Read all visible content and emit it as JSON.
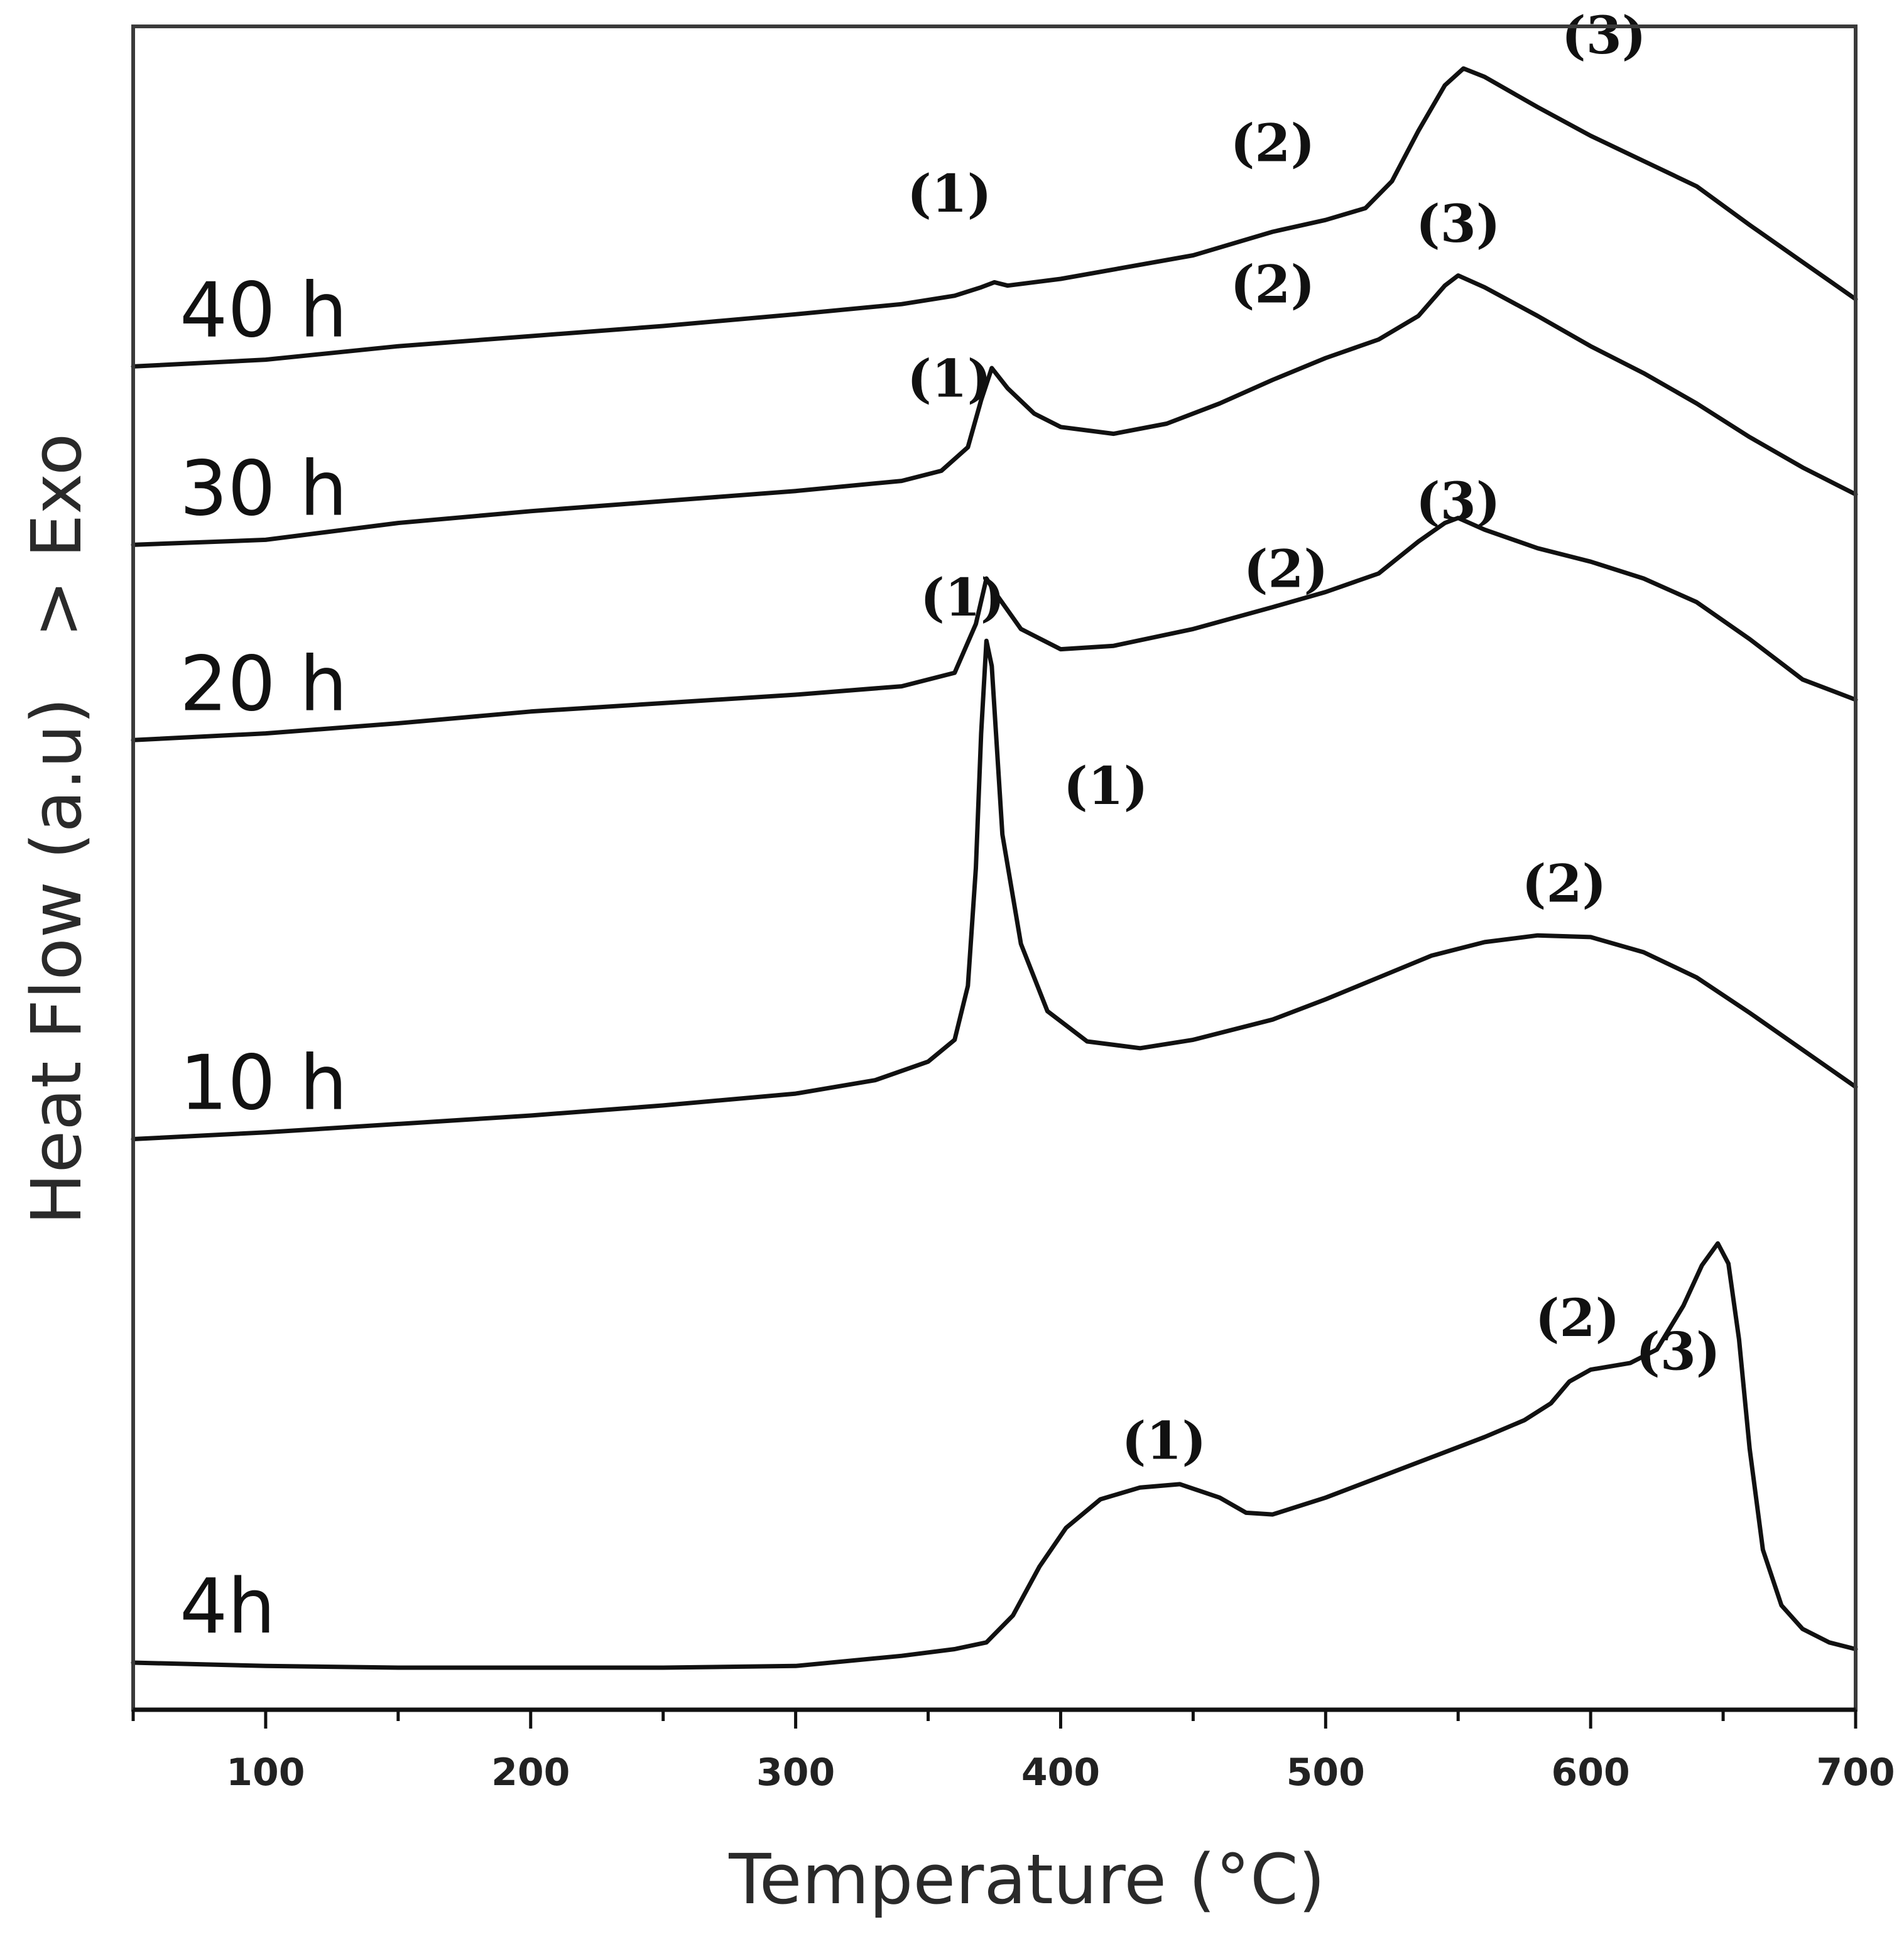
{
  "chart_data": {
    "type": "line",
    "title": "",
    "xlabel": "Temperature (°C)",
    "ylabel": "Heat Flow (a.u)",
    "ylabel_suffix": "> Exo",
    "xlim": [
      50,
      700
    ],
    "ylim": [
      0,
      10
    ],
    "x_ticks": [
      100,
      200,
      300,
      400,
      500,
      600,
      700
    ],
    "x_tick_labels": [
      "100",
      "200",
      "300",
      "400",
      "500",
      "600",
      "700"
    ],
    "grid": false,
    "series": [
      {
        "name": "40 h",
        "points": [
          [
            50,
            7.98
          ],
          [
            100,
            8.02
          ],
          [
            150,
            8.1
          ],
          [
            200,
            8.16
          ],
          [
            250,
            8.22
          ],
          [
            300,
            8.29
          ],
          [
            340,
            8.35
          ],
          [
            360,
            8.4
          ],
          [
            370,
            8.45
          ],
          [
            375,
            8.48
          ],
          [
            380,
            8.46
          ],
          [
            400,
            8.5
          ],
          [
            450,
            8.64
          ],
          [
            480,
            8.78
          ],
          [
            500,
            8.85
          ],
          [
            515,
            8.92
          ],
          [
            525,
            9.08
          ],
          [
            535,
            9.38
          ],
          [
            545,
            9.65
          ],
          [
            552,
            9.75
          ],
          [
            560,
            9.7
          ],
          [
            580,
            9.52
          ],
          [
            600,
            9.35
          ],
          [
            620,
            9.2
          ],
          [
            640,
            9.05
          ],
          [
            660,
            8.82
          ],
          [
            680,
            8.6
          ],
          [
            700,
            8.38
          ]
        ],
        "annotations": [
          {
            "text": "(1)",
            "x": 358,
            "y": 8.9
          },
          {
            "text": "(2)",
            "x": 480,
            "y": 9.2
          },
          {
            "text": "(3)",
            "x": 605,
            "y": 9.84
          }
        ]
      },
      {
        "name": "30 h",
        "points": [
          [
            50,
            6.92
          ],
          [
            100,
            6.95
          ],
          [
            150,
            7.05
          ],
          [
            200,
            7.12
          ],
          [
            250,
            7.18
          ],
          [
            300,
            7.24
          ],
          [
            340,
            7.3
          ],
          [
            355,
            7.36
          ],
          [
            365,
            7.5
          ],
          [
            370,
            7.78
          ],
          [
            374,
            7.97
          ],
          [
            380,
            7.85
          ],
          [
            390,
            7.7
          ],
          [
            400,
            7.62
          ],
          [
            420,
            7.58
          ],
          [
            440,
            7.64
          ],
          [
            460,
            7.76
          ],
          [
            480,
            7.9
          ],
          [
            500,
            8.03
          ],
          [
            520,
            8.14
          ],
          [
            535,
            8.28
          ],
          [
            545,
            8.46
          ],
          [
            550,
            8.52
          ],
          [
            560,
            8.45
          ],
          [
            580,
            8.28
          ],
          [
            600,
            8.1
          ],
          [
            620,
            7.94
          ],
          [
            640,
            7.76
          ],
          [
            660,
            7.56
          ],
          [
            680,
            7.38
          ],
          [
            700,
            7.22
          ]
        ],
        "annotations": [
          {
            "text": "(1)",
            "x": 358,
            "y": 7.8
          },
          {
            "text": "(2)",
            "x": 480,
            "y": 8.36
          },
          {
            "text": "(3)",
            "x": 550,
            "y": 8.72
          }
        ]
      },
      {
        "name": "20 h",
        "points": [
          [
            50,
            5.76
          ],
          [
            100,
            5.8
          ],
          [
            150,
            5.86
          ],
          [
            200,
            5.93
          ],
          [
            250,
            5.98
          ],
          [
            300,
            6.03
          ],
          [
            340,
            6.08
          ],
          [
            360,
            6.16
          ],
          [
            368,
            6.45
          ],
          [
            372,
            6.72
          ],
          [
            376,
            6.62
          ],
          [
            385,
            6.42
          ],
          [
            400,
            6.3
          ],
          [
            420,
            6.32
          ],
          [
            450,
            6.42
          ],
          [
            480,
            6.55
          ],
          [
            500,
            6.64
          ],
          [
            520,
            6.75
          ],
          [
            535,
            6.94
          ],
          [
            545,
            7.05
          ],
          [
            550,
            7.08
          ],
          [
            560,
            7.01
          ],
          [
            580,
            6.9
          ],
          [
            600,
            6.82
          ],
          [
            620,
            6.72
          ],
          [
            640,
            6.58
          ],
          [
            660,
            6.36
          ],
          [
            680,
            6.12
          ],
          [
            700,
            6.0
          ]
        ],
        "annotations": [
          {
            "text": "(1)",
            "x": 363,
            "y": 6.5
          },
          {
            "text": "(2)",
            "x": 485,
            "y": 6.67
          },
          {
            "text": "(3)",
            "x": 550,
            "y": 7.07
          }
        ]
      },
      {
        "name": "10 h",
        "points": [
          [
            50,
            3.39
          ],
          [
            100,
            3.43
          ],
          [
            150,
            3.48
          ],
          [
            200,
            3.53
          ],
          [
            250,
            3.59
          ],
          [
            300,
            3.66
          ],
          [
            330,
            3.74
          ],
          [
            350,
            3.85
          ],
          [
            360,
            3.98
          ],
          [
            365,
            4.3
          ],
          [
            368,
            5.0
          ],
          [
            370,
            5.8
          ],
          [
            372,
            6.35
          ],
          [
            374,
            6.2
          ],
          [
            378,
            5.2
          ],
          [
            385,
            4.55
          ],
          [
            395,
            4.15
          ],
          [
            410,
            3.97
          ],
          [
            430,
            3.93
          ],
          [
            450,
            3.98
          ],
          [
            480,
            4.1
          ],
          [
            500,
            4.22
          ],
          [
            520,
            4.35
          ],
          [
            540,
            4.48
          ],
          [
            560,
            4.56
          ],
          [
            580,
            4.6
          ],
          [
            600,
            4.59
          ],
          [
            620,
            4.5
          ],
          [
            640,
            4.35
          ],
          [
            660,
            4.14
          ],
          [
            680,
            3.92
          ],
          [
            700,
            3.7
          ]
        ],
        "annotations": [
          {
            "text": "(1)",
            "x": 417,
            "y": 5.38
          },
          {
            "text": "(2)",
            "x": 590,
            "y": 4.8
          }
        ]
      },
      {
        "name": "4h",
        "points": [
          [
            50,
            0.28
          ],
          [
            100,
            0.26
          ],
          [
            150,
            0.25
          ],
          [
            200,
            0.25
          ],
          [
            250,
            0.25
          ],
          [
            300,
            0.26
          ],
          [
            340,
            0.32
          ],
          [
            360,
            0.36
          ],
          [
            372,
            0.4
          ],
          [
            382,
            0.56
          ],
          [
            392,
            0.85
          ],
          [
            402,
            1.08
          ],
          [
            415,
            1.25
          ],
          [
            430,
            1.32
          ],
          [
            445,
            1.34
          ],
          [
            460,
            1.26
          ],
          [
            470,
            1.17
          ],
          [
            480,
            1.16
          ],
          [
            500,
            1.26
          ],
          [
            520,
            1.38
          ],
          [
            540,
            1.5
          ],
          [
            560,
            1.62
          ],
          [
            575,
            1.72
          ],
          [
            585,
            1.82
          ],
          [
            592,
            1.95
          ],
          [
            600,
            2.02
          ],
          [
            615,
            2.06
          ],
          [
            625,
            2.14
          ],
          [
            635,
            2.4
          ],
          [
            642,
            2.64
          ],
          [
            648,
            2.77
          ],
          [
            652,
            2.65
          ],
          [
            656,
            2.2
          ],
          [
            660,
            1.55
          ],
          [
            665,
            0.95
          ],
          [
            672,
            0.62
          ],
          [
            680,
            0.48
          ],
          [
            690,
            0.4
          ],
          [
            700,
            0.36
          ]
        ],
        "annotations": [
          {
            "text": "(1)",
            "x": 439,
            "y": 1.49
          },
          {
            "text": "(2)",
            "x": 595,
            "y": 2.22
          },
          {
            "text": "(3)",
            "x": 633,
            "y": 2.02
          }
        ]
      }
    ]
  }
}
